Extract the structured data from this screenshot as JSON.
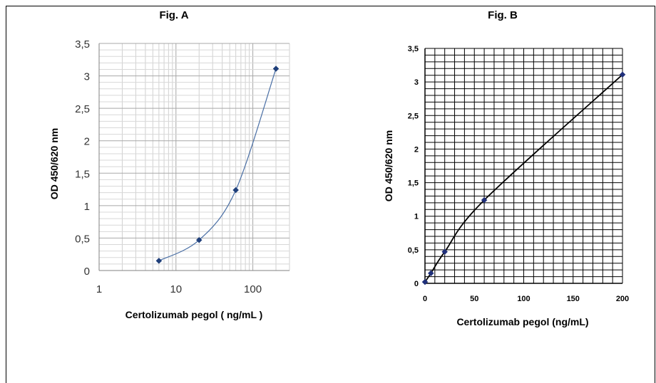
{
  "chart_data": [
    {
      "id": "A",
      "type": "line",
      "title": "Fig. A",
      "xlabel": "Certolizumab pegol ( ng/mL )",
      "ylabel": "OD 450/620 nm",
      "x_scale": "log",
      "xlim": [
        1,
        300
      ],
      "ylim": [
        0,
        3.5
      ],
      "x_ticks": [
        1,
        10,
        100
      ],
      "x_tick_labels": [
        "1",
        "10",
        "100"
      ],
      "y_ticks": [
        0,
        0.5,
        1,
        1.5,
        2,
        2.5,
        3,
        3.5
      ],
      "y_tick_labels": [
        "0",
        "0,5",
        "1",
        "1,5",
        "2",
        "2,5",
        "3",
        "3,5"
      ],
      "grid": true,
      "line_color": "#4a6fa5",
      "marker_color": "#1f3f7a",
      "series": [
        {
          "x": [
            6,
            20,
            60,
            200
          ],
          "y": [
            0.15,
            0.47,
            1.24,
            3.11
          ]
        }
      ]
    },
    {
      "id": "B",
      "type": "line",
      "title": "Fig. B",
      "xlabel": "Certolizumab pegol (ng/mL)",
      "ylabel": "OD 450/620 nm",
      "x_scale": "linear",
      "xlim": [
        0,
        200
      ],
      "ylim": [
        0,
        3.5
      ],
      "x_ticks": [
        0,
        50,
        100,
        150,
        200
      ],
      "x_tick_labels": [
        "0",
        "50",
        "100",
        "150",
        "200"
      ],
      "y_ticks": [
        0,
        0.5,
        1,
        1.5,
        2,
        2.5,
        3,
        3.5
      ],
      "y_tick_labels": [
        "0",
        "0,5",
        "1",
        "1,5",
        "2",
        "2,5",
        "3",
        "3,5"
      ],
      "grid": true,
      "line_color": "#000000",
      "marker_color": "#1f2f7a",
      "series": [
        {
          "x": [
            0,
            6,
            20,
            60,
            200
          ],
          "y": [
            0.02,
            0.15,
            0.47,
            1.24,
            3.11
          ]
        }
      ]
    }
  ]
}
